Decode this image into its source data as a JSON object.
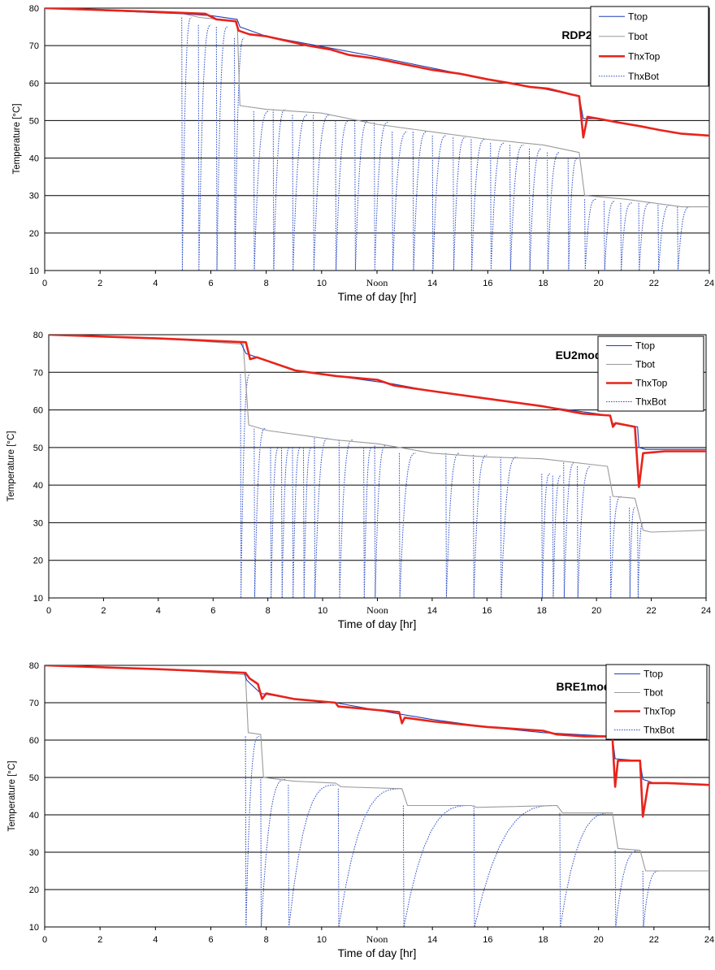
{
  "chart_data": [
    {
      "type": "line",
      "title": "RDP2",
      "xlabel": "Time of day [hr]",
      "ylabel": "Temperature [°C]",
      "xlim": [
        0,
        24
      ],
      "ylim": [
        10,
        80
      ],
      "xticks": [
        "0",
        "2",
        "4",
        "6",
        "8",
        "10",
        "Noon",
        "14",
        "16",
        "18",
        "20",
        "22",
        "24"
      ],
      "yticks": [
        "10",
        "20",
        "30",
        "40",
        "50",
        "60",
        "70",
        "80"
      ],
      "grid": "horizontal",
      "legend_position": "top-right",
      "legend": [
        "Ttop",
        "Tbot",
        "ThxTop",
        "ThxBot"
      ],
      "series": [
        {
          "name": "Ttop",
          "color": "#1f3fb5",
          "style": "solid",
          "x": [
            0,
            5,
            6,
            6.95,
            7.05,
            8,
            10.2,
            12,
            14,
            16,
            18,
            19.3,
            19.45,
            20,
            20.7,
            21.5,
            22.2,
            23,
            24
          ],
          "y": [
            80,
            78.5,
            78,
            77,
            75,
            72.5,
            69.5,
            67,
            64,
            61,
            58.5,
            56.5,
            50.5,
            50.5,
            49.5,
            48.5,
            47.5,
            46.5,
            46
          ]
        },
        {
          "name": "Tbot",
          "color": "#9a9a9a",
          "style": "solid",
          "x": [
            0,
            5,
            5.6,
            6.95,
            7.05,
            8,
            10,
            12,
            14,
            16,
            18,
            19.3,
            19.5,
            21,
            22,
            23,
            24
          ],
          "y": [
            80,
            78.5,
            77.5,
            76.5,
            54,
            53,
            52,
            49,
            47,
            45,
            43.5,
            41.5,
            30,
            29,
            28,
            27,
            27
          ]
        },
        {
          "name": "ThxTop",
          "color": "#e8231a",
          "style": "solid",
          "x": [
            0,
            4,
            5.8,
            6.2,
            6.9,
            7,
            7.4,
            8,
            8.6,
            9.5,
            10.3,
            11,
            12,
            13,
            14,
            15,
            16,
            16.8,
            17.5,
            18.2,
            19,
            19.3,
            19.45,
            19.6,
            20,
            20.7,
            21.5,
            22.2,
            23,
            24
          ],
          "y": [
            80,
            79,
            78.5,
            77,
            76.5,
            74,
            73,
            72.5,
            71.5,
            70,
            69,
            67.5,
            66.5,
            65,
            63.5,
            62.5,
            61,
            60,
            59,
            58.5,
            57,
            56.5,
            45.5,
            51,
            50.5,
            49.5,
            48.5,
            47.5,
            46.5,
            46
          ]
        },
        {
          "name": "ThxBot",
          "color": "#3050c8",
          "style": "dotted",
          "dip_low": 10,
          "dips": [
            [
              4.95,
              5.3,
              77.5
            ],
            [
              5.55,
              6,
              75.5
            ],
            [
              6.2,
              6.6,
              75
            ],
            [
              6.85,
              7.2,
              72
            ],
            [
              7.55,
              8.1,
              52.5
            ],
            [
              8.25,
              8.7,
              53
            ],
            [
              8.95,
              9.5,
              51.5
            ],
            [
              9.7,
              10.3,
              51.5
            ],
            [
              10.5,
              11,
              50
            ],
            [
              11.2,
              11.7,
              50
            ],
            [
              11.9,
              12.4,
              49.5
            ],
            [
              12.55,
              13.1,
              47
            ],
            [
              13.3,
              13.8,
              47
            ],
            [
              14,
              14.5,
              46
            ],
            [
              14.75,
              15.2,
              45.5
            ],
            [
              15.4,
              15.9,
              45
            ],
            [
              16.1,
              16.6,
              44
            ],
            [
              16.8,
              17.3,
              43.5
            ],
            [
              17.5,
              17.95,
              42.5
            ],
            [
              18.15,
              18.6,
              41.5
            ],
            [
              18.9,
              19.25,
              40
            ],
            [
              19.5,
              19.9,
              29
            ],
            [
              20.2,
              20.6,
              28.5
            ],
            [
              20.8,
              21.2,
              28
            ],
            [
              21.45,
              21.85,
              28
            ],
            [
              22.15,
              22.6,
              27.5
            ],
            [
              22.85,
              23.3,
              27
            ]
          ]
        }
      ]
    },
    {
      "type": "line",
      "title": "EU2mod",
      "xlabel": "Time of day [hr]",
      "ylabel": "Temperature  [°C]",
      "xlim": [
        0,
        24
      ],
      "ylim": [
        10,
        80
      ],
      "xticks": [
        "0",
        "2",
        "4",
        "6",
        "8",
        "10",
        "Noon",
        "14",
        "16",
        "18",
        "20",
        "22",
        "24"
      ],
      "yticks": [
        "10",
        "20",
        "30",
        "40",
        "50",
        "60",
        "70",
        "80"
      ],
      "grid": "horizontal",
      "legend_position": "top-right",
      "legend": [
        "Ttop",
        "Tbot",
        "ThxTop",
        "ThxBot"
      ],
      "series": [
        {
          "name": "Ttop",
          "color": "#1f3fb5",
          "style": "solid",
          "x": [
            0,
            4,
            7,
            7.2,
            7.6,
            9,
            10.5,
            12.5,
            14,
            16,
            18,
            20.5,
            20.55,
            21.5,
            21.55,
            21.8,
            22.5,
            24
          ],
          "y": [
            80,
            79,
            78,
            75,
            74,
            70.5,
            69,
            67,
            65,
            63,
            61,
            58.5,
            56.5,
            55.5,
            50,
            49.5,
            49.5,
            49.5
          ]
        },
        {
          "name": "Tbot",
          "color": "#9a9a9a",
          "style": "solid",
          "x": [
            0,
            4,
            7.1,
            7.3,
            8,
            10.5,
            12,
            14,
            16,
            18,
            20.4,
            20.6,
            21.4,
            21.7,
            22,
            24
          ],
          "y": [
            80,
            79,
            77.5,
            56,
            54.5,
            52,
            51,
            48.5,
            47.5,
            47,
            45,
            37,
            36.5,
            28,
            27.5,
            28
          ]
        },
        {
          "name": "ThxTop",
          "color": "#e8231a",
          "style": "solid",
          "x": [
            0,
            4,
            7.2,
            7.35,
            7.6,
            9,
            10.5,
            12,
            12.6,
            14,
            16,
            18,
            19.5,
            20.5,
            20.6,
            20.7,
            21.4,
            21.55,
            21.7,
            22.5,
            24
          ],
          "y": [
            80,
            79,
            78,
            73.5,
            74,
            70.5,
            69,
            68,
            66.5,
            65,
            63,
            61,
            59,
            58.5,
            55.5,
            56.5,
            55.5,
            39.5,
            48.5,
            49,
            49
          ]
        },
        {
          "name": "ThxBot",
          "color": "#3050c8",
          "style": "dotted",
          "dip_low": 10,
          "dips": [
            [
              7,
              7.35,
              69.5
            ],
            [
              7.5,
              7.9,
              55
            ],
            [
              8.1,
              8.4,
              50
            ],
            [
              8.5,
              8.8,
              50
            ],
            [
              8.9,
              9.2,
              50
            ],
            [
              9.3,
              9.6,
              50
            ],
            [
              9.7,
              10.2,
              52.5
            ],
            [
              10.6,
              11.1,
              52
            ],
            [
              11.5,
              11.8,
              50
            ],
            [
              11.9,
              12.3,
              50.5
            ],
            [
              12.8,
              13.4,
              48.5
            ],
            [
              14.5,
              15,
              48.5
            ],
            [
              15.5,
              16,
              48
            ],
            [
              16.5,
              17.1,
              47.5
            ],
            [
              18,
              18.3,
              43
            ],
            [
              18.4,
              18.7,
              42.5
            ],
            [
              18.8,
              19.2,
              46
            ],
            [
              19.3,
              19.8,
              45
            ],
            [
              20.5,
              20.9,
              37
            ],
            [
              21.2,
              21.4,
              34
            ],
            [
              21.5,
              21.7,
              30
            ]
          ]
        }
      ]
    },
    {
      "type": "line",
      "title": "BRE1mod",
      "xlabel": "Time of day [hr]",
      "ylabel": "Temperature [°C]",
      "xlim": [
        0,
        24
      ],
      "ylim": [
        10,
        80
      ],
      "xticks": [
        "0",
        "2",
        "4",
        "6",
        "8",
        "10",
        "Noon",
        "14",
        "16",
        "18",
        "20",
        "22",
        "24"
      ],
      "yticks": [
        "10",
        "20",
        "30",
        "40",
        "50",
        "60",
        "70",
        "80"
      ],
      "grid": "horizontal",
      "legend_position": "top-right",
      "legend": [
        "Ttop",
        "Tbot",
        "ThxTop",
        "ThxBot"
      ],
      "series": [
        {
          "name": "Ttop",
          "color": "#1f3fb5",
          "style": "solid",
          "x": [
            0,
            4,
            7.2,
            7.3,
            7.8,
            9,
            10.5,
            12,
            14,
            16,
            18,
            20.5,
            20.6,
            21.5,
            21.6,
            22,
            24
          ],
          "y": [
            80,
            79,
            78,
            76,
            72.5,
            71,
            70,
            68,
            65.5,
            63.5,
            62,
            61,
            55,
            54.5,
            49.5,
            48.5,
            48
          ]
        },
        {
          "name": "Tbot",
          "color": "#9a9a9a",
          "style": "solid",
          "x": [
            0,
            4,
            7.25,
            7.35,
            7.8,
            7.9,
            9,
            10.5,
            10.7,
            12.9,
            13.1,
            15.4,
            15.6,
            18.5,
            18.7,
            20.5,
            20.7,
            21.5,
            21.7,
            24
          ],
          "y": [
            80,
            79,
            77.5,
            62,
            61.5,
            50,
            49,
            48.5,
            47.5,
            47,
            42.5,
            42.5,
            42,
            42.5,
            40.5,
            40.5,
            31,
            30.5,
            25,
            25
          ]
        },
        {
          "name": "ThxTop",
          "color": "#e8231a",
          "style": "solid",
          "x": [
            0,
            4,
            7.25,
            7.4,
            7.7,
            7.85,
            8,
            9,
            10.5,
            10.6,
            12.8,
            12.9,
            13,
            14,
            16,
            18,
            18.5,
            19.5,
            20.5,
            20.6,
            20.7,
            21.5,
            21.6,
            21.8,
            22.5,
            24
          ],
          "y": [
            80,
            79,
            78,
            76.5,
            75,
            71,
            72.5,
            71,
            70,
            69,
            67.5,
            64.5,
            66,
            65,
            63.5,
            62.5,
            61.5,
            61,
            61,
            47.5,
            54.5,
            54.5,
            39.5,
            48.5,
            48.5,
            48
          ]
        },
        {
          "name": "ThxBot",
          "color": "#3050c8",
          "style": "dotted",
          "dip_low": 10,
          "dips": [
            [
              7.25,
              7.75,
              61
            ],
            [
              7.8,
              8.7,
              49.5
            ],
            [
              8.8,
              10.5,
              48
            ],
            [
              10.6,
              12.9,
              47
            ],
            [
              12.95,
              15.4,
              42.5
            ],
            [
              15.5,
              18.5,
              42.5
            ],
            [
              18.6,
              20.5,
              40.5
            ],
            [
              20.6,
              21.5,
              30.5
            ],
            [
              21.6,
              22.2,
              25
            ]
          ]
        }
      ]
    }
  ]
}
